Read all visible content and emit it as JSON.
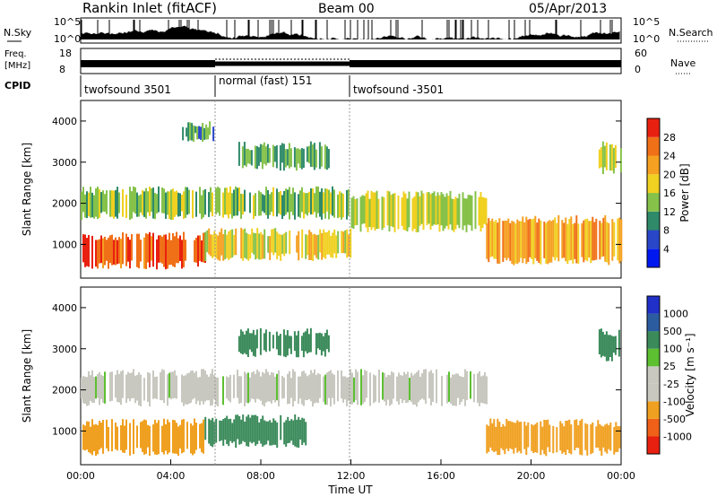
{
  "header": {
    "title": "Rankin Inlet (fitACF)",
    "beam": "Beam 00",
    "date": "05/Apr/2013"
  },
  "top_strip": {
    "left_label": "N.Sky",
    "left_ticks": [
      "10^5",
      "10^0"
    ],
    "right_label": "N.Search",
    "right_ticks": [
      "10^5",
      "10^0"
    ]
  },
  "freq_strip": {
    "left_label_1": "Freq.",
    "left_label_2": "[MHz]",
    "left_ticks": [
      "18",
      "8"
    ],
    "right_label": "Nave",
    "right_ticks": [
      "60",
      "0"
    ]
  },
  "cpid": {
    "label": "CPID",
    "segments": [
      {
        "name": "twofsound 3501",
        "start": 0,
        "end": 6
      },
      {
        "name": "normal (fast) 151",
        "start": 6,
        "end": 12
      },
      {
        "name": "twofsound -3501",
        "start": 12,
        "end": 24
      }
    ]
  },
  "x_axis": {
    "label": "Time UT",
    "ticks": [
      "00:00",
      "04:00",
      "08:00",
      "12:00",
      "16:00",
      "20:00",
      "00:00"
    ]
  },
  "colors": {
    "power_scale": [
      "#0018f0",
      "#2a46c8",
      "#2f8a6a",
      "#86c24a",
      "#f0d020",
      "#f5a020",
      "#f07018",
      "#e82010"
    ],
    "velocity_scale": [
      "#e82010",
      "#f06018",
      "#f0a020",
      "#c8c8c0",
      "#c8c8c0",
      "#5cc030",
      "#3a8a5a",
      "#2c5ca0",
      "#2030c8"
    ]
  },
  "chart_data": [
    {
      "type": "heatmap",
      "title": "Power",
      "xlabel": "Time UT",
      "ylabel": "Slant Range [km]",
      "xlim": [
        0,
        24
      ],
      "ylim": [
        180,
        4500
      ],
      "yticks": [
        1000,
        2000,
        3000,
        4000
      ],
      "colorbar": {
        "label": "Power [dB]",
        "ticks": [
          4,
          8,
          12,
          16,
          20,
          24,
          28
        ],
        "range": [
          0,
          32
        ]
      },
      "series": [
        {
          "x_start": 0.0,
          "x_end": 5.5,
          "y_low": 500,
          "y_high": 1200,
          "value": 27
        },
        {
          "x_start": 5.5,
          "x_end": 12.0,
          "y_low": 700,
          "y_high": 1300,
          "value": 18
        },
        {
          "x_start": 0.0,
          "x_end": 12.0,
          "y_low": 1700,
          "y_high": 2300,
          "value": 14
        },
        {
          "x_start": 7.0,
          "x_end": 11.0,
          "y_low": 2900,
          "y_high": 3400,
          "value": 12
        },
        {
          "x_start": 12.0,
          "x_end": 18.0,
          "y_low": 1400,
          "y_high": 2200,
          "value": 16
        },
        {
          "x_start": 18.0,
          "x_end": 24.0,
          "y_low": 600,
          "y_high": 1600,
          "value": 22
        },
        {
          "x_start": 4.5,
          "x_end": 6.0,
          "y_low": 3600,
          "y_high": 3900,
          "value": 10
        },
        {
          "x_start": 23.0,
          "x_end": 24.0,
          "y_low": 2800,
          "y_high": 3400,
          "value": 15
        }
      ]
    },
    {
      "type": "heatmap",
      "title": "Velocity",
      "xlabel": "Time UT",
      "ylabel": "Slant Range [km]",
      "xlim": [
        0,
        24
      ],
      "ylim": [
        180,
        4500
      ],
      "yticks": [
        1000,
        2000,
        3000,
        4000
      ],
      "colorbar": {
        "label": "Velocity [m s⁻¹]",
        "ticks": [
          -1000,
          -500,
          -100,
          -25,
          25,
          100,
          500,
          1000
        ]
      },
      "series": [
        {
          "x_start": 0.0,
          "x_end": 5.5,
          "y_low": 500,
          "y_high": 1200,
          "value": -200
        },
        {
          "x_start": 5.5,
          "x_end": 10.0,
          "y_low": 700,
          "y_high": 1300,
          "value": 150
        },
        {
          "x_start": 0.0,
          "x_end": 18.0,
          "y_low": 1700,
          "y_high": 2400,
          "value": 0
        },
        {
          "x_start": 7.0,
          "x_end": 11.0,
          "y_low": 2900,
          "y_high": 3400,
          "value": 150
        },
        {
          "x_start": 18.0,
          "x_end": 24.0,
          "y_low": 500,
          "y_high": 1200,
          "value": -300
        },
        {
          "x_start": 23.0,
          "x_end": 24.0,
          "y_low": 2800,
          "y_high": 3400,
          "value": 150
        }
      ]
    }
  ]
}
